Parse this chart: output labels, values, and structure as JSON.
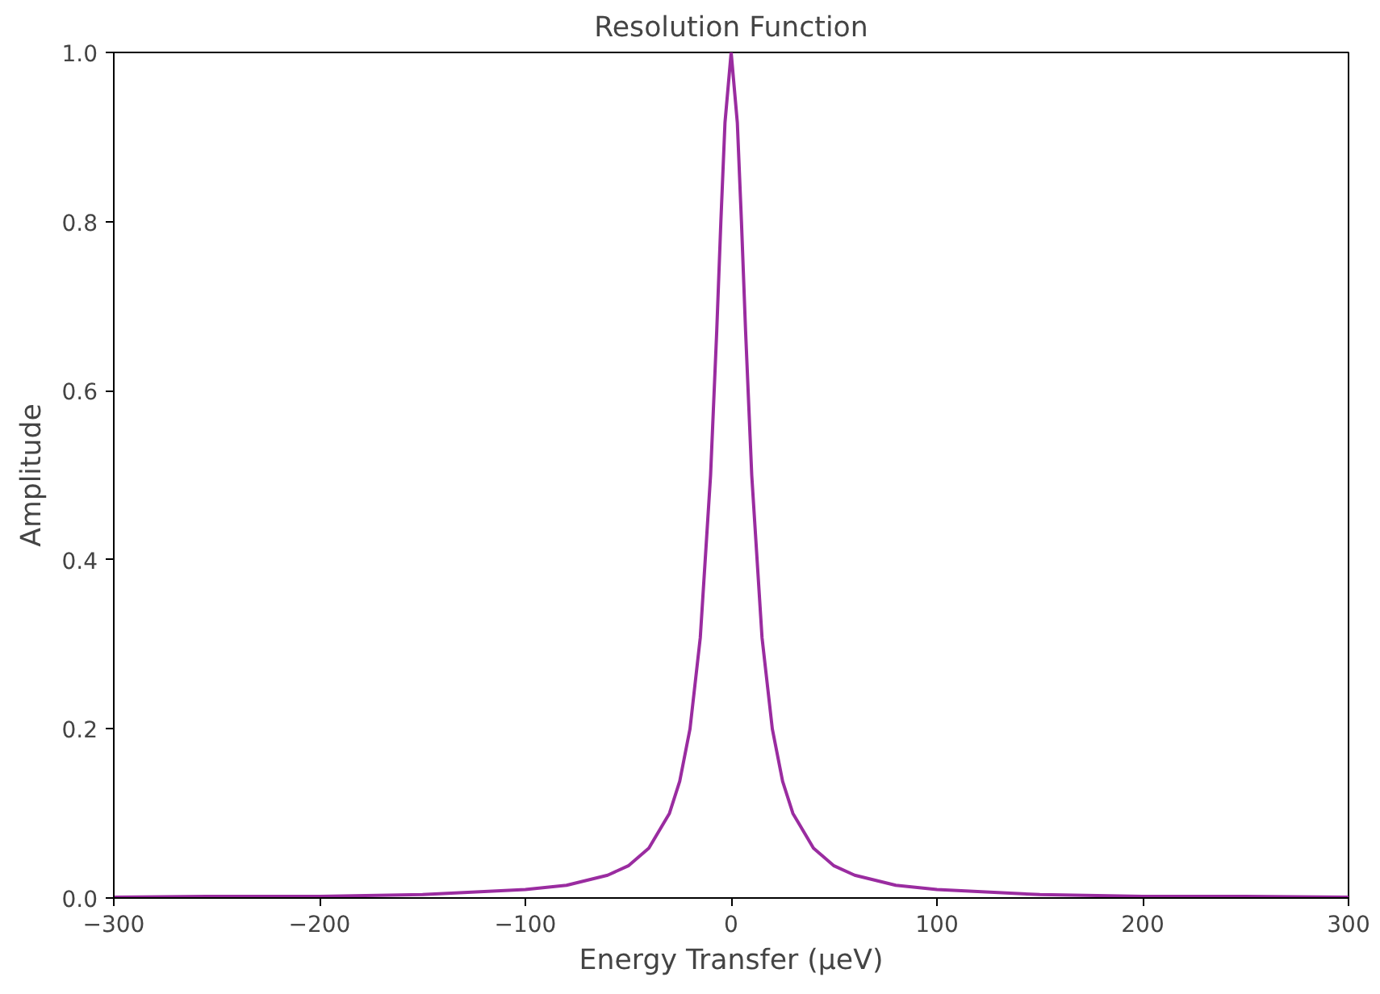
{
  "chart_data": {
    "type": "line",
    "title": "Resolution Function",
    "xlabel": "Energy Transfer (μeV)",
    "ylabel": "Amplitude",
    "x": [
      -300,
      -250,
      -200,
      -150,
      -100,
      -80,
      -60,
      -50,
      -40,
      -30,
      -25,
      -20,
      -15,
      -10,
      -7,
      -5,
      -3,
      0,
      3,
      5,
      7,
      10,
      15,
      20,
      25,
      30,
      40,
      50,
      60,
      80,
      100,
      150,
      200,
      250,
      300
    ],
    "series": [
      {
        "color": "#9a2ca0",
        "values": [
          0.001,
          0.002,
          0.002,
          0.004,
          0.01,
          0.015,
          0.027,
          0.038,
          0.059,
          0.1,
          0.138,
          0.2,
          0.308,
          0.5,
          0.671,
          0.8,
          0.917,
          1.0,
          0.917,
          0.8,
          0.671,
          0.5,
          0.308,
          0.2,
          0.138,
          0.1,
          0.059,
          0.038,
          0.027,
          0.015,
          0.01,
          0.004,
          0.002,
          0.002,
          0.001
        ]
      }
    ],
    "xlim": [
      -300,
      300
    ],
    "ylim": [
      0,
      1.0
    ],
    "xticks": [
      {
        "value": -300,
        "label": "−300"
      },
      {
        "value": -200,
        "label": "−200"
      },
      {
        "value": -100,
        "label": "−100"
      },
      0,
      100,
      200,
      300
    ],
    "yticks": [
      {
        "value": 0,
        "label": "0.0"
      },
      0.2,
      0.4,
      0.6,
      0.8,
      {
        "value": 1,
        "label": "1.0"
      }
    ],
    "grid": false,
    "marker": "none",
    "line_style": "solid"
  }
}
